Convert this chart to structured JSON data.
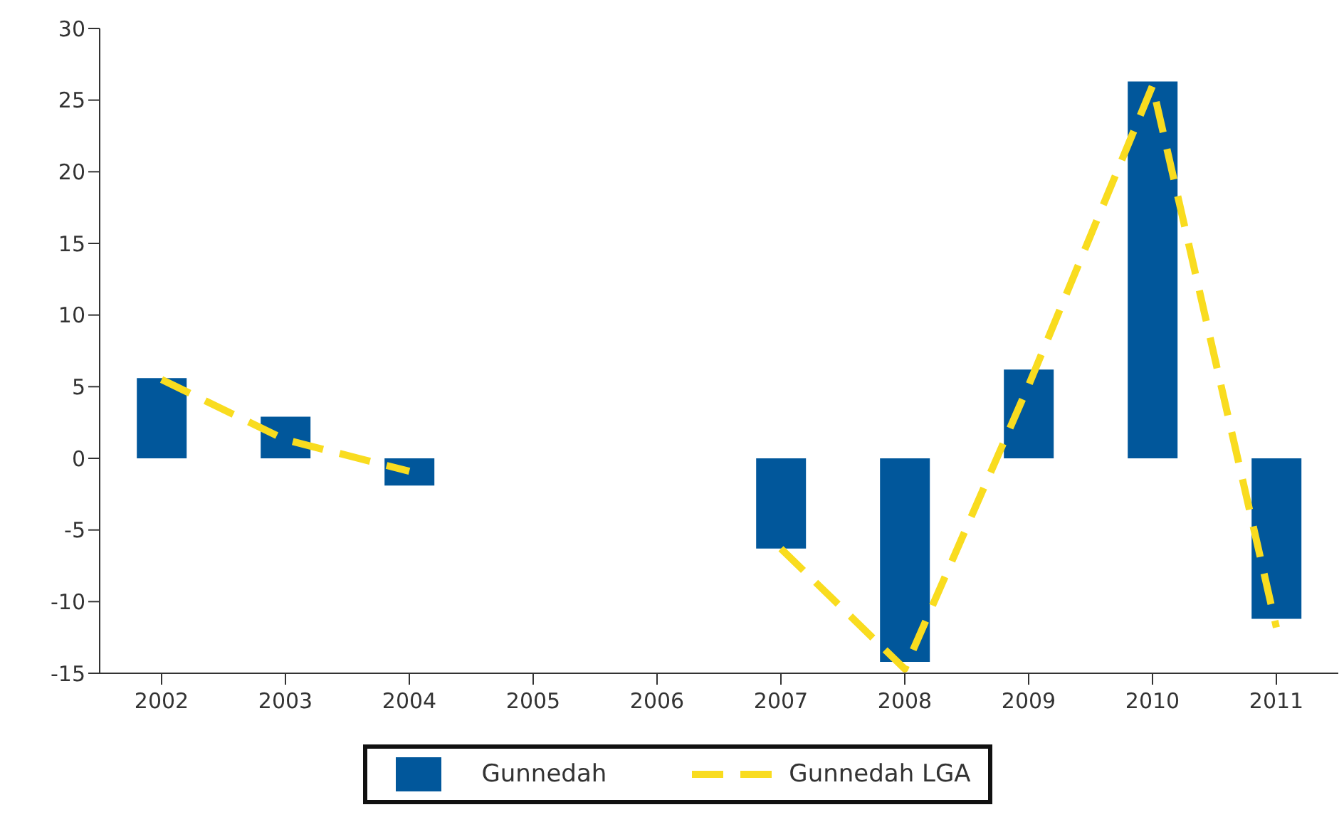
{
  "chart_data": {
    "type": "bar",
    "categories": [
      "2002",
      "2003",
      "2004",
      "2005",
      "2006",
      "2007",
      "2008",
      "2009",
      "2010",
      "2011"
    ],
    "series": [
      {
        "name": "Gunnedah",
        "color": "#01579b",
        "values": [
          5.6,
          2.9,
          -1.9,
          null,
          null,
          -6.3,
          -14.2,
          6.2,
          26.3,
          -11.2
        ]
      },
      {
        "name": "Gunnedah LGA",
        "type": "line",
        "color": "#f9dc1f",
        "line_style": "dashed",
        "values": [
          5.5,
          1.3,
          -0.9,
          null,
          null,
          -6.3,
          -14.7,
          5.1,
          26,
          -11.8
        ]
      }
    ],
    "ylim": [
      -15,
      30
    ],
    "yticks": [
      -15,
      -10,
      -5,
      0,
      5,
      10,
      15,
      20,
      25,
      30
    ],
    "grid": false,
    "legend": "bottom",
    "marker": "none"
  }
}
